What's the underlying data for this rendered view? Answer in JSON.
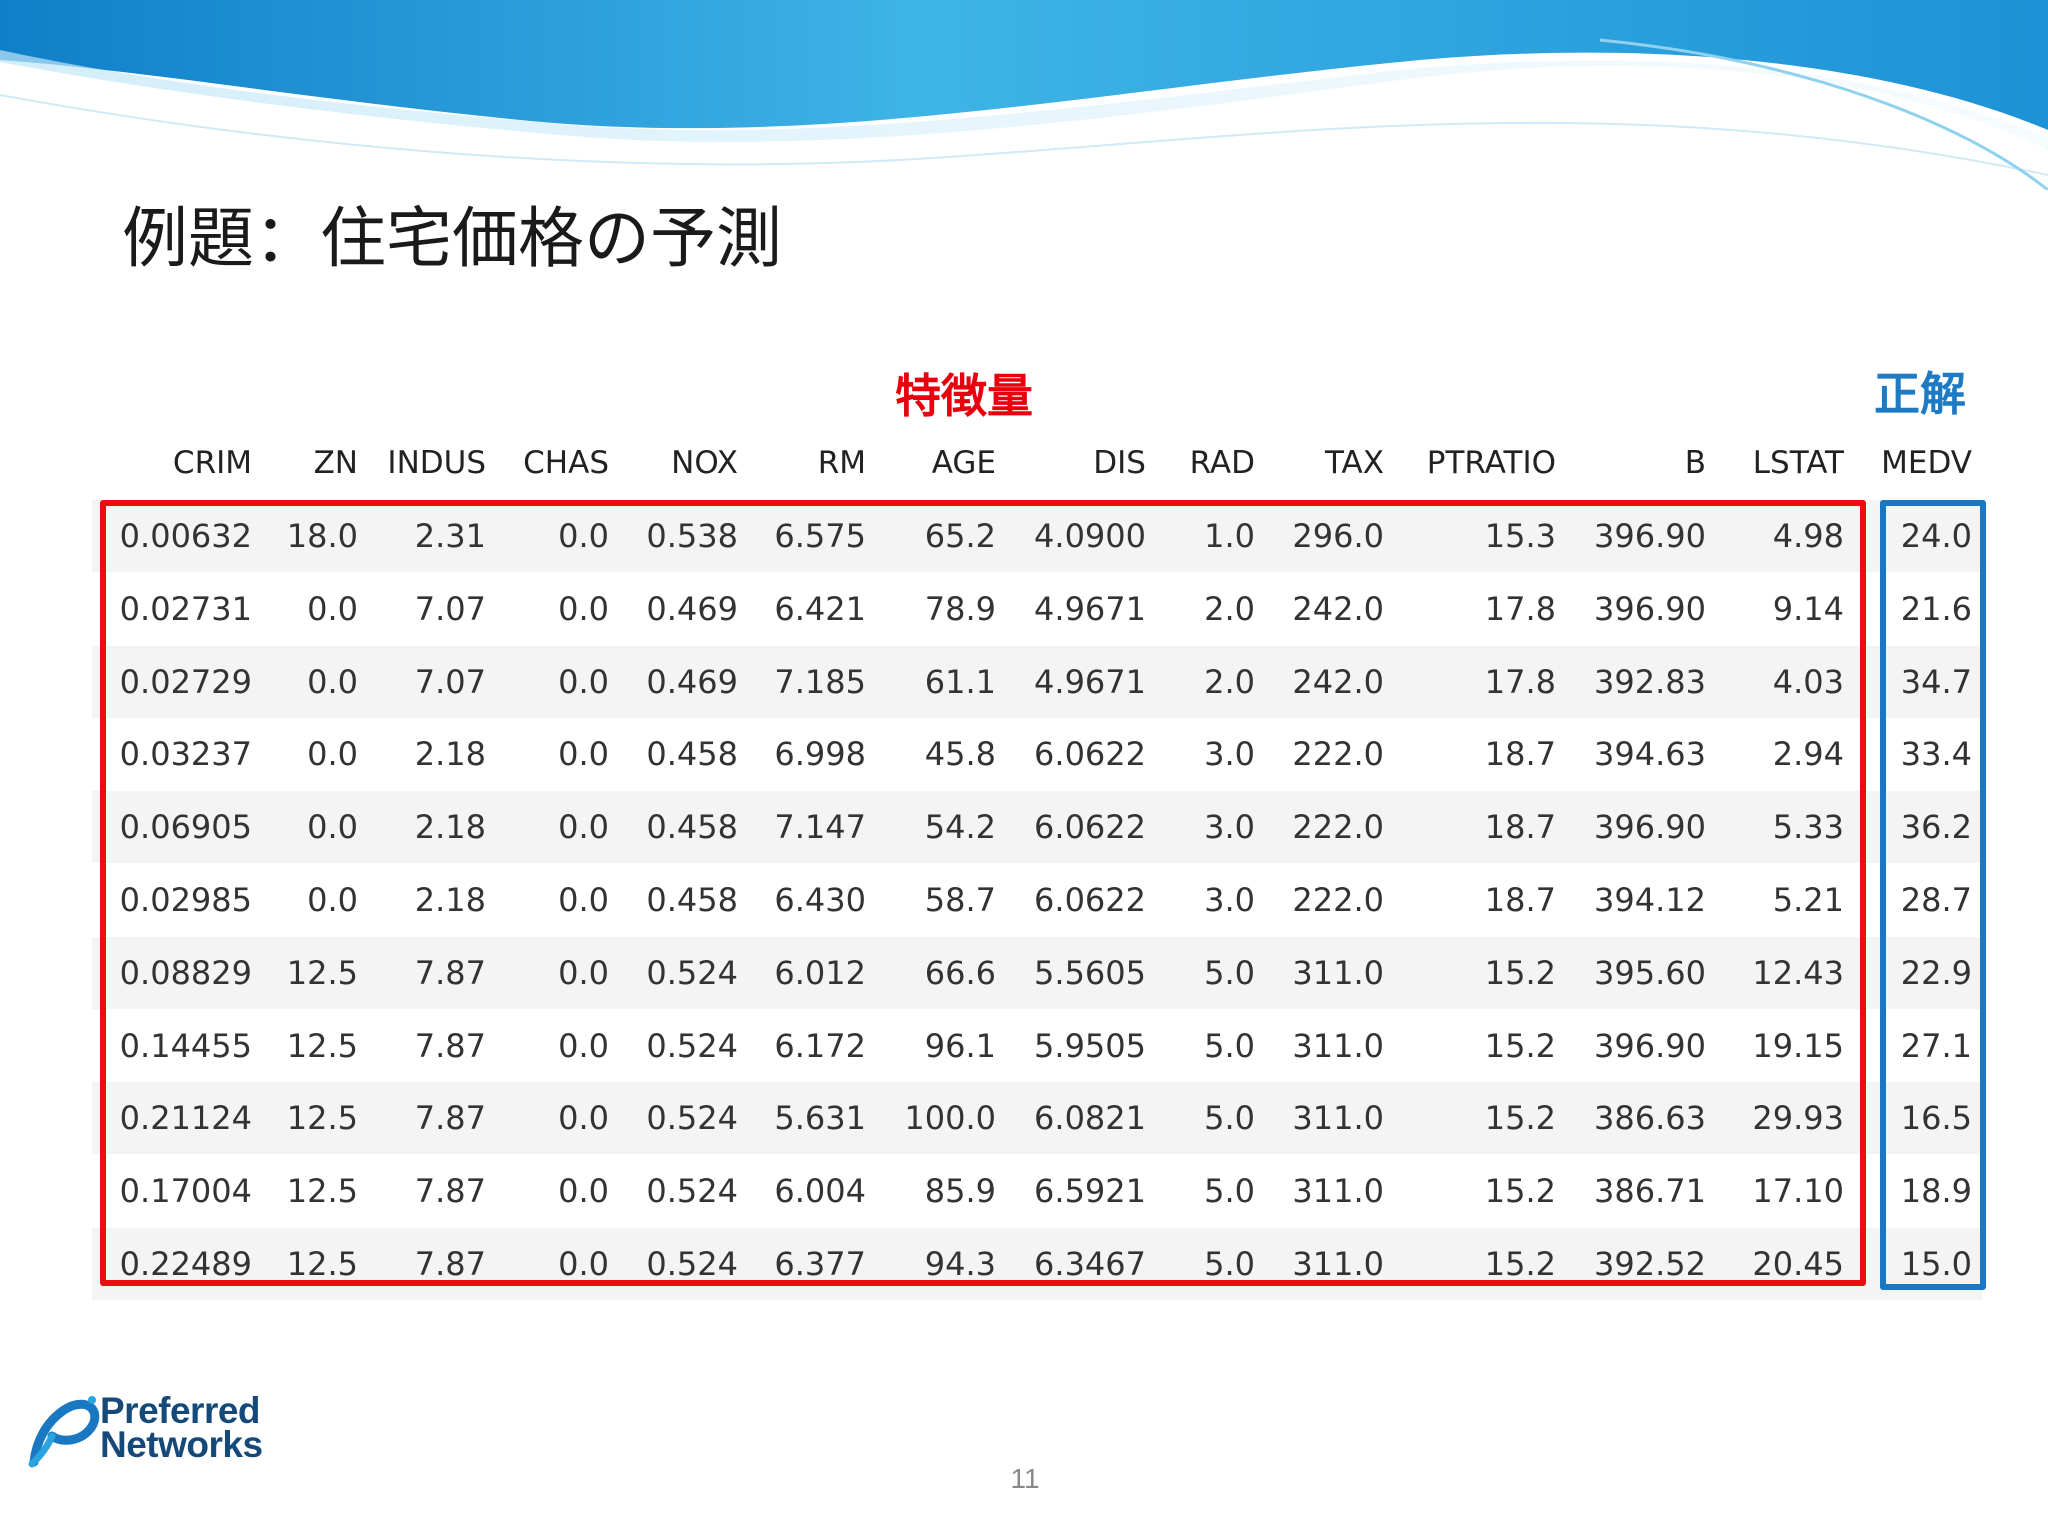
{
  "slide": {
    "title": "例題：住宅価格の予測",
    "features_label": "特徴量",
    "target_label": "正解",
    "page_number": "11"
  },
  "logo": {
    "line1": "Preferred",
    "line2": "Networks"
  },
  "table": {
    "columns": [
      "CRIM",
      "ZN",
      "INDUS",
      "CHAS",
      "NOX",
      "RM",
      "AGE",
      "DIS",
      "RAD",
      "TAX",
      "PTRATIO",
      "B",
      "LSTAT",
      "MEDV"
    ],
    "rows": [
      [
        "0.00632",
        "18.0",
        "2.31",
        "0.0",
        "0.538",
        "6.575",
        "65.2",
        "4.0900",
        "1.0",
        "296.0",
        "15.3",
        "396.90",
        "4.98",
        "24.0"
      ],
      [
        "0.02731",
        "0.0",
        "7.07",
        "0.0",
        "0.469",
        "6.421",
        "78.9",
        "4.9671",
        "2.0",
        "242.0",
        "17.8",
        "396.90",
        "9.14",
        "21.6"
      ],
      [
        "0.02729",
        "0.0",
        "7.07",
        "0.0",
        "0.469",
        "7.185",
        "61.1",
        "4.9671",
        "2.0",
        "242.0",
        "17.8",
        "392.83",
        "4.03",
        "34.7"
      ],
      [
        "0.03237",
        "0.0",
        "2.18",
        "0.0",
        "0.458",
        "6.998",
        "45.8",
        "6.0622",
        "3.0",
        "222.0",
        "18.7",
        "394.63",
        "2.94",
        "33.4"
      ],
      [
        "0.06905",
        "0.0",
        "2.18",
        "0.0",
        "0.458",
        "7.147",
        "54.2",
        "6.0622",
        "3.0",
        "222.0",
        "18.7",
        "396.90",
        "5.33",
        "36.2"
      ],
      [
        "0.02985",
        "0.0",
        "2.18",
        "0.0",
        "0.458",
        "6.430",
        "58.7",
        "6.0622",
        "3.0",
        "222.0",
        "18.7",
        "394.12",
        "5.21",
        "28.7"
      ],
      [
        "0.08829",
        "12.5",
        "7.87",
        "0.0",
        "0.524",
        "6.012",
        "66.6",
        "5.5605",
        "5.0",
        "311.0",
        "15.2",
        "395.60",
        "12.43",
        "22.9"
      ],
      [
        "0.14455",
        "12.5",
        "7.87",
        "0.0",
        "0.524",
        "6.172",
        "96.1",
        "5.9505",
        "5.0",
        "311.0",
        "15.2",
        "396.90",
        "19.15",
        "27.1"
      ],
      [
        "0.21124",
        "12.5",
        "7.87",
        "0.0",
        "0.524",
        "5.631",
        "100.0",
        "6.0821",
        "5.0",
        "311.0",
        "15.2",
        "386.63",
        "29.93",
        "16.5"
      ],
      [
        "0.17004",
        "12.5",
        "7.87",
        "0.0",
        "0.524",
        "6.004",
        "85.9",
        "6.5921",
        "5.0",
        "311.0",
        "15.2",
        "386.71",
        "17.10",
        "18.9"
      ],
      [
        "0.22489",
        "12.5",
        "7.87",
        "0.0",
        "0.524",
        "6.377",
        "94.3",
        "6.3467",
        "5.0",
        "311.0",
        "15.2",
        "392.52",
        "20.45",
        "15.0"
      ]
    ]
  },
  "colors": {
    "features_highlight": "#ee0c12",
    "target_highlight": "#1a77c4",
    "header_wave": "#1e9bd8"
  }
}
